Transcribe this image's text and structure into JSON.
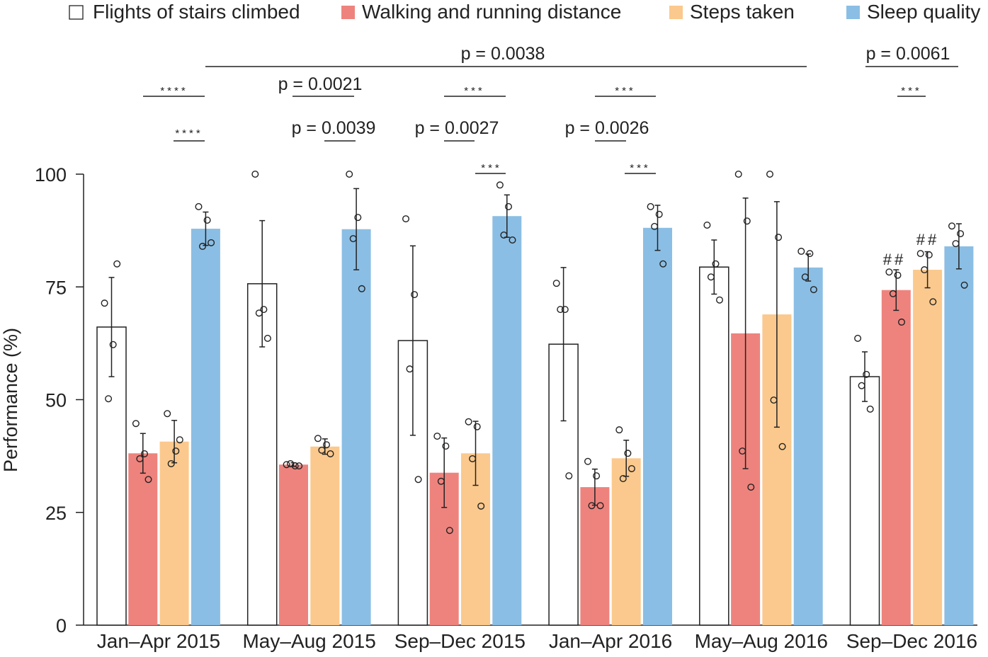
{
  "chart_data": {
    "type": "bar",
    "title": "",
    "xlabel": "",
    "ylabel": "Performance (%)",
    "ylim": [
      0,
      100
    ],
    "yticks": [
      "0",
      "25",
      "50",
      "75",
      "100"
    ],
    "grid": false,
    "legend_position": "top",
    "categories": [
      "Jan–Apr 2015",
      "May–Aug 2015",
      "Sep–Dec 2015",
      "Jan–Apr 2016",
      "May–Aug 2016",
      "Sep–Dec 2016"
    ],
    "series": [
      {
        "name": "Flights of stairs climbed",
        "color": "#ffffff",
        "values": [
          66.1,
          75.7,
          63.1,
          62.3,
          79.4,
          55.1
        ],
        "errors": [
          11,
          14,
          21,
          17,
          6,
          5.5
        ],
        "points": [
          [
            71.4,
            62.2,
            50.2,
            80.1
          ],
          [
            100,
            70.0,
            69.2,
            63.6
          ],
          [
            90.1,
            73.3,
            56.8,
            32.3
          ],
          [
            75.8,
            70.0,
            70.0,
            33.1
          ],
          [
            88.7,
            80.1,
            77.2,
            72.1
          ],
          [
            63.6,
            55.6,
            53.1,
            47.9
          ]
        ]
      },
      {
        "name": "Walking and running distance",
        "color": "#ee837d",
        "values": [
          38.1,
          35.6,
          33.8,
          30.6,
          64.7,
          74.3
        ],
        "errors": [
          4.4,
          0.4,
          7.7,
          4,
          30,
          4.5
        ],
        "points": [
          [
            44.7,
            38.0,
            36.9,
            32.3
          ],
          [
            35.6,
            35.3,
            35.8,
            35.3
          ],
          [
            41.9,
            39.7,
            31.9,
            21.0
          ],
          [
            36.3,
            33.1,
            26.5,
            26.5
          ],
          [
            100,
            89.6,
            38.6,
            30.6
          ],
          [
            78.3,
            77.6,
            73.5,
            67.2
          ]
        ]
      },
      {
        "name": "Steps taken",
        "color": "#fbc98d",
        "values": [
          40.7,
          39.6,
          38.1,
          37.0,
          68.9,
          78.8
        ],
        "errors": [
          4.7,
          1.7,
          7.1,
          4,
          25,
          4
        ],
        "points": [
          [
            46.9,
            38.6,
            35.8,
            41.1
          ],
          [
            41.4,
            40.0,
            38.8,
            38.0
          ],
          [
            45.1,
            44.0,
            36.9,
            26.4
          ],
          [
            43.3,
            38.1,
            32.5,
            34.7
          ],
          [
            100,
            86.0,
            49.9,
            39.6
          ],
          [
            82.4,
            82.1,
            78.8,
            71.7
          ]
        ]
      },
      {
        "name": "Sleep quality",
        "color": "#8bbee4",
        "values": [
          87.9,
          87.8,
          90.7,
          88.1,
          79.3,
          84.0
        ],
        "errors": [
          3.7,
          9,
          4.7,
          5,
          3,
          5
        ],
        "points": [
          [
            92.8,
            89.8,
            84.0,
            84.8
          ],
          [
            100,
            90.4,
            85.7,
            74.6
          ],
          [
            97.6,
            92.8,
            86.5,
            85.4
          ],
          [
            92.8,
            91.1,
            88.4,
            80.1
          ],
          [
            82.9,
            82.4,
            77.2,
            74.4
          ],
          [
            88.5,
            86.8,
            84.6,
            75.4
          ]
        ]
      }
    ],
    "annotations": [
      {
        "text": "p = 0.0038",
        "between": [
          "Jan–Apr 2015 Sleep quality",
          "May–Aug 2016 Flights of stairs climbed"
        ]
      },
      {
        "text": "p = 0.0061",
        "between": [
          "Sep–Dec 2016 Flights of stairs climbed",
          "Sep–Dec 2016 Sleep quality"
        ]
      },
      {
        "text": "****",
        "between": [
          "Jan–Apr 2015 Walking and running distance",
          "Jan–Apr 2015 Sleep quality"
        ]
      },
      {
        "text": "****",
        "between": [
          "Jan–Apr 2015 Steps taken",
          "Jan–Apr 2015 Sleep quality"
        ]
      },
      {
        "text": "p = 0.0021",
        "between": [
          "May–Aug 2015 Walking and running distance",
          "May–Aug 2015 Sleep quality"
        ]
      },
      {
        "text": "p = 0.0039",
        "between": [
          "May–Aug 2015 Steps taken",
          "May–Aug 2015 Sleep quality"
        ]
      },
      {
        "text": "***",
        "between": [
          "Sep–Dec 2015 Walking and running distance",
          "Sep–Dec 2015 Sleep quality"
        ]
      },
      {
        "text": "p = 0.0027",
        "between": [
          "Sep–Dec 2015 Walking and running distance",
          "Sep–Dec 2015 Steps taken"
        ]
      },
      {
        "text": "***",
        "between": [
          "Sep–Dec 2015 Steps taken",
          "Sep–Dec 2015 Sleep quality"
        ]
      },
      {
        "text": "***",
        "between": [
          "Jan–Apr 2016 Walking and running distance",
          "Jan–Apr 2016 Sleep quality"
        ]
      },
      {
        "text": "p = 0.0026",
        "between": [
          "Jan–Apr 2016 Walking and running distance",
          "Jan–Apr 2016 Steps taken"
        ]
      },
      {
        "text": "***",
        "between": [
          "Jan–Apr 2016 Steps taken",
          "Jan–Apr 2016 Sleep quality"
        ]
      },
      {
        "text": "***",
        "between": [
          "Sep–Dec 2016 Walking and running distance",
          "Sep–Dec 2016 Steps taken"
        ]
      },
      {
        "text": "##",
        "on": "Sep–Dec 2016 Walking and running distance"
      },
      {
        "text": "##",
        "on": "Sep–Dec 2016 Steps taken"
      }
    ]
  }
}
